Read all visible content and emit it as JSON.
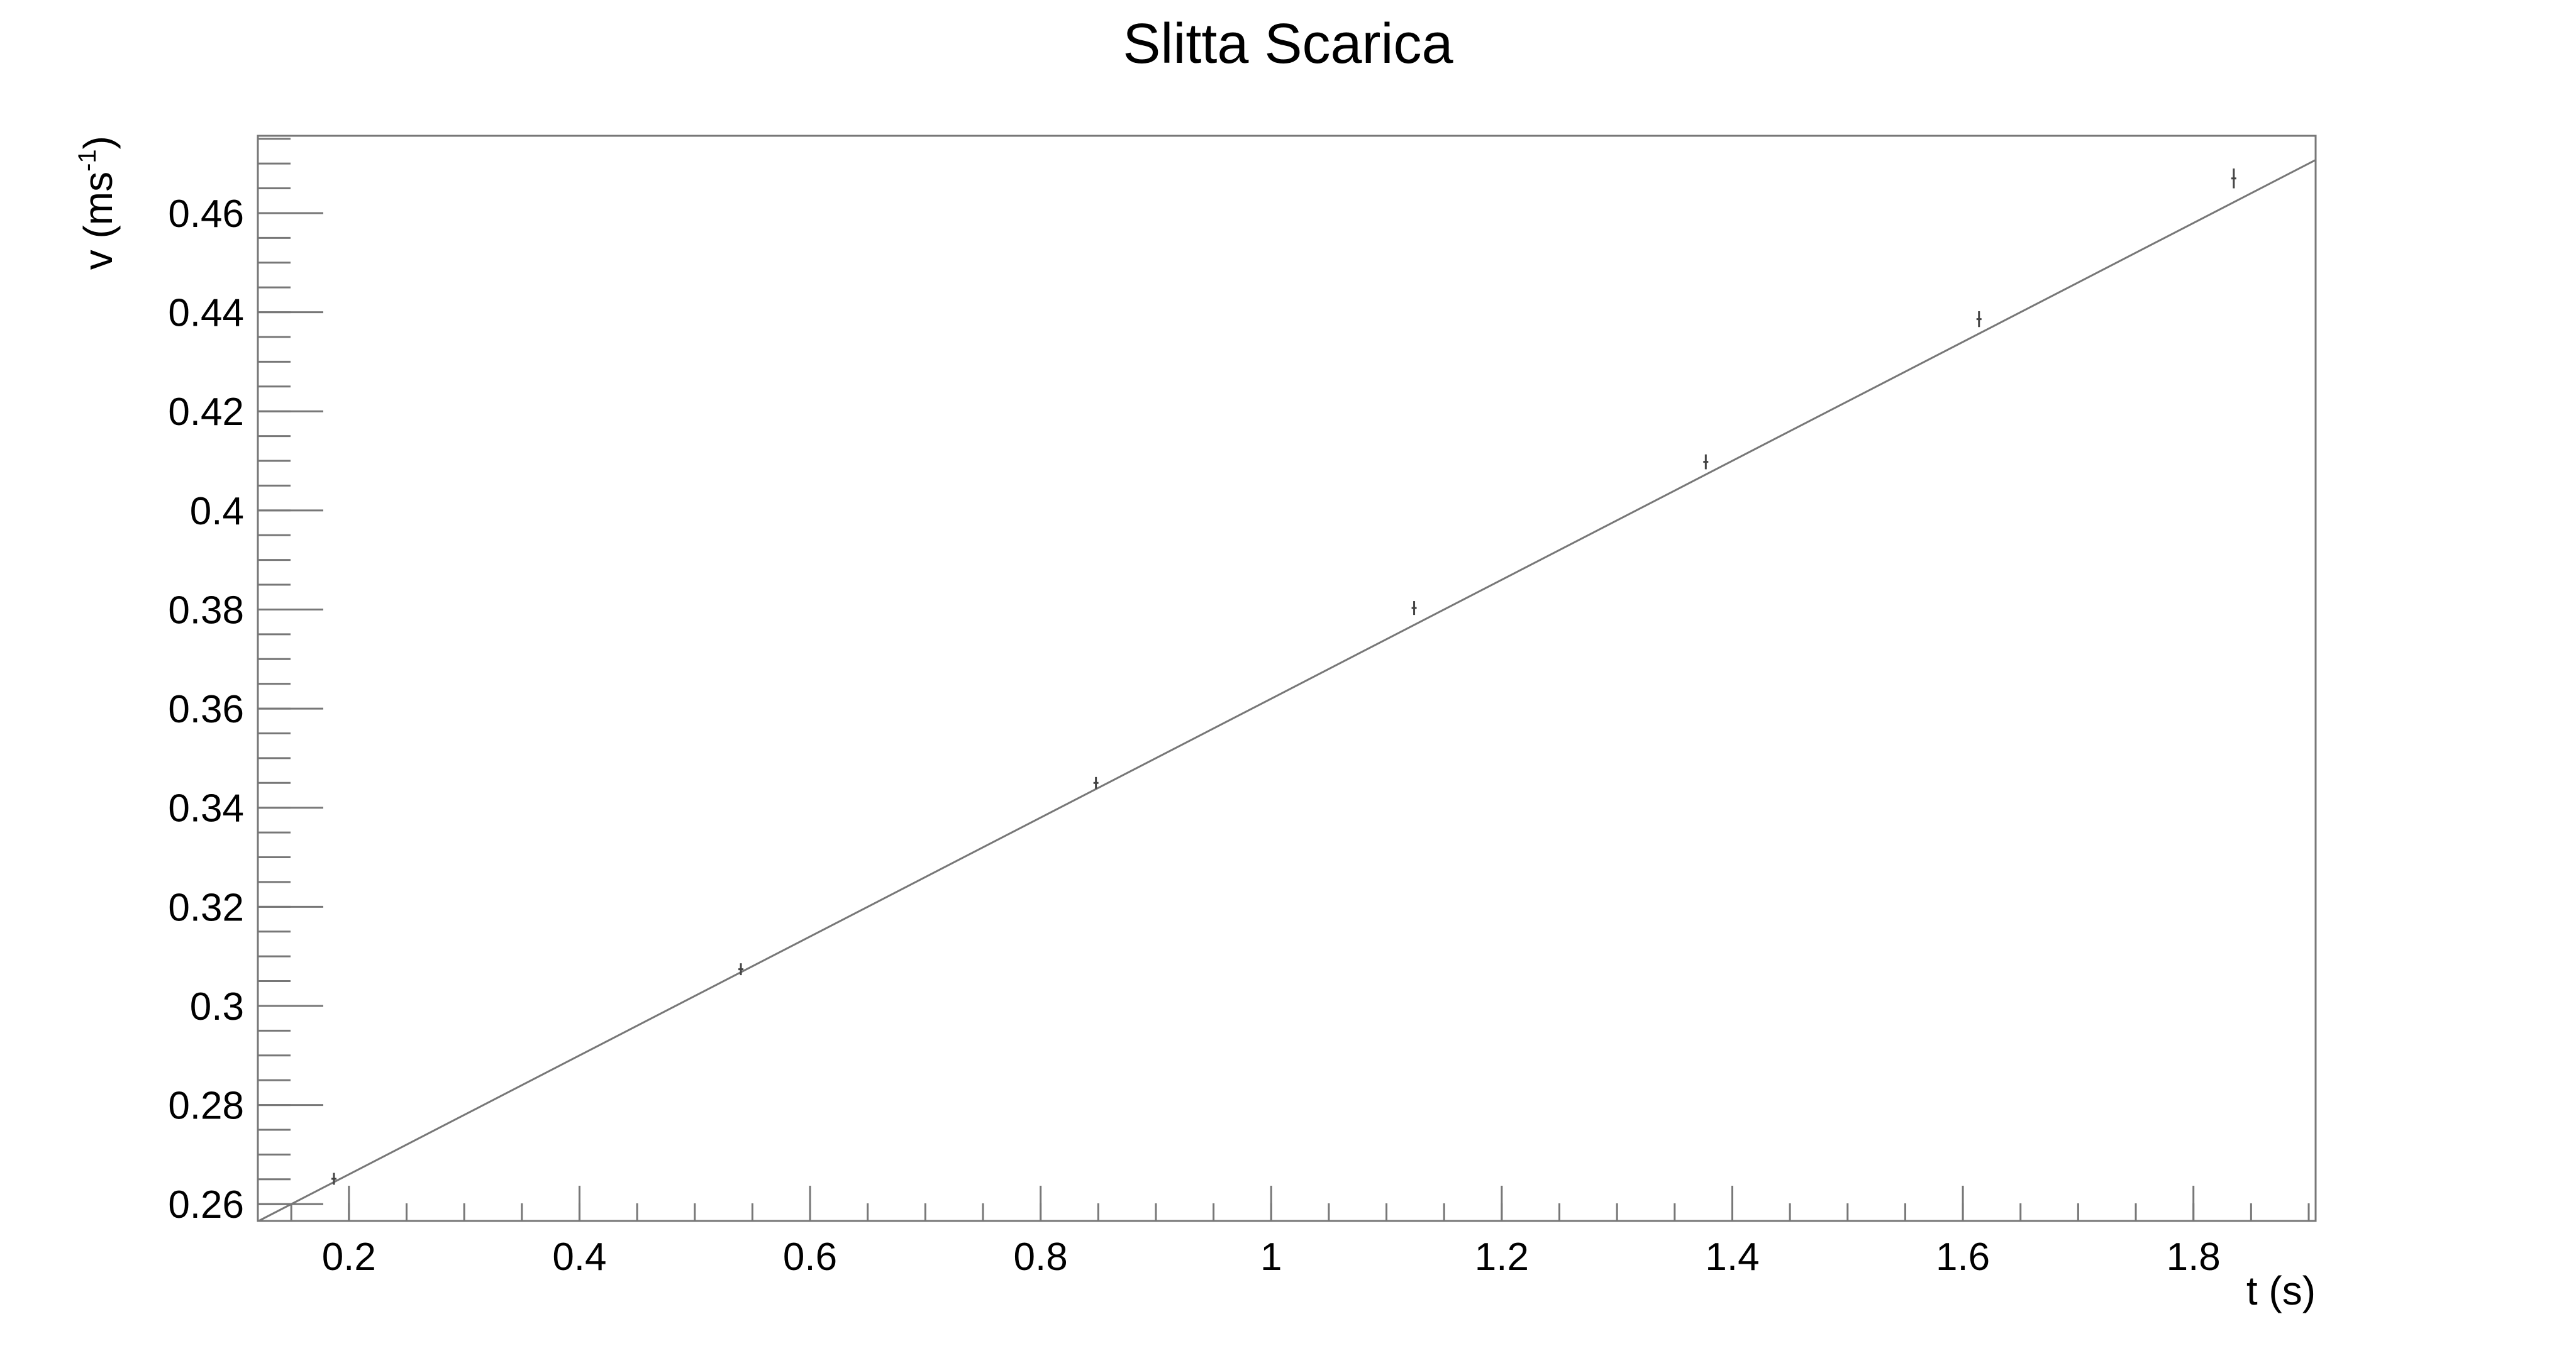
{
  "chart_data": {
    "type": "scatter",
    "title": "Slitta Scarica",
    "xlabel": "t (s)",
    "ylabel_main": "v (ms",
    "ylabel_sup": "-1",
    "ylabel_close": ")",
    "xlim": [
      0.121,
      1.906
    ],
    "ylim": [
      0.2566,
      0.4756
    ],
    "x_major_ticks": [
      0.2,
      0.4,
      0.6,
      0.8,
      1.0,
      1.2,
      1.4,
      1.6,
      1.8
    ],
    "x_tick_labels": [
      "0.2",
      "0.4",
      "0.6",
      "0.8",
      "1",
      "1.2",
      "1.4",
      "1.6",
      "1.8"
    ],
    "x_minor_step": 0.05,
    "y_major_ticks": [
      0.26,
      0.28,
      0.3,
      0.32,
      0.34,
      0.36,
      0.38,
      0.4,
      0.42,
      0.44,
      0.46
    ],
    "y_tick_labels": [
      "0.26",
      "0.28",
      "0.3",
      "0.32",
      "0.34",
      "0.36",
      "0.38",
      "0.4",
      "0.42",
      "0.44",
      "0.46"
    ],
    "y_minor_step": 0.005,
    "series": [
      {
        "points": [
          {
            "x": 0.187,
            "y": 0.2651,
            "err": 0.0012
          },
          {
            "x": 0.54,
            "y": 0.3074,
            "err": 0.0012
          },
          {
            "x": 0.848,
            "y": 0.345,
            "err": 0.0012
          },
          {
            "x": 1.124,
            "y": 0.3803,
            "err": 0.0014
          },
          {
            "x": 1.377,
            "y": 0.4098,
            "err": 0.0015
          },
          {
            "x": 1.614,
            "y": 0.4386,
            "err": 0.0016
          },
          {
            "x": 1.835,
            "y": 0.467,
            "err": 0.002
          }
        ]
      }
    ],
    "fit_line": {
      "slope": 0.12,
      "intercept": 0.242
    },
    "grid": false,
    "legend": "none"
  }
}
